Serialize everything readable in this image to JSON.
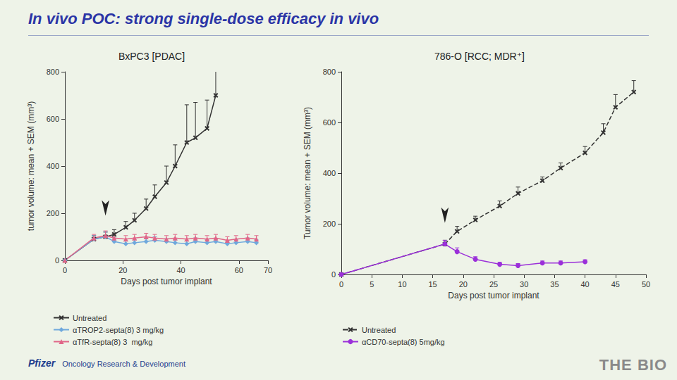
{
  "heading": "In vivo POC: strong single-dose efficacy in vivo",
  "footer": [
    "Pfizer",
    "Oncology Research & Development"
  ],
  "watermark": "THE BIO",
  "chart_data": [
    {
      "type": "line",
      "title": "BxPC3 [PDAC]",
      "x_label": "Days post tumor implant",
      "y_label": "tumor volume: mean + SEM (mm³)",
      "xlim": [
        0,
        70
      ],
      "xticks": [
        0,
        20,
        40,
        60
      ],
      "ylim": [
        0,
        800
      ],
      "yticks": [
        0,
        200,
        400,
        600,
        800
      ],
      "grid": false,
      "legend": "bottom",
      "arrow_x": 14,
      "series": [
        {
          "name": "Untreated",
          "color": "#333333",
          "marker": "x",
          "line_style": "solid",
          "x": [
            0,
            10,
            14,
            17,
            21,
            24,
            28,
            31,
            35,
            38,
            42,
            45,
            49,
            52
          ],
          "values": [
            0,
            90,
            100,
            110,
            140,
            170,
            220,
            270,
            330,
            400,
            500,
            520,
            560,
            700
          ],
          "errors": [
            null,
            15,
            20,
            20,
            25,
            30,
            40,
            50,
            70,
            90,
            160,
            150,
            120,
            130
          ]
        },
        {
          "name": "αTROP2-septa(8) 3 mg/kg",
          "color": "#6fa8dc",
          "marker": "diamond",
          "line_style": "solid",
          "x": [
            0,
            10,
            14,
            17,
            21,
            24,
            28,
            31,
            35,
            38,
            42,
            45,
            49,
            52,
            56,
            59,
            63,
            66
          ],
          "values": [
            0,
            90,
            100,
            80,
            70,
            75,
            80,
            85,
            80,
            75,
            70,
            80,
            75,
            80,
            70,
            75,
            80,
            75
          ],
          "errors": [
            null,
            15,
            20,
            15,
            12,
            12,
            15,
            15,
            12,
            12,
            12,
            15,
            12,
            12,
            12,
            12,
            15,
            12
          ]
        },
        {
          "name": "αTfR-septa(8) 3  mg/kg",
          "color": "#e06688",
          "marker": "triangle",
          "line_style": "solid",
          "x": [
            0,
            10,
            14,
            17,
            21,
            24,
            28,
            31,
            35,
            38,
            42,
            45,
            49,
            52,
            56,
            59,
            63,
            66
          ],
          "values": [
            0,
            95,
            105,
            95,
            90,
            95,
            100,
            95,
            90,
            95,
            90,
            95,
            90,
            95,
            85,
            90,
            95,
            90
          ],
          "errors": [
            null,
            15,
            20,
            15,
            15,
            15,
            15,
            15,
            15,
            15,
            15,
            15,
            15,
            15,
            15,
            15,
            15,
            15
          ]
        }
      ]
    },
    {
      "type": "line",
      "title": "786-O [RCC; MDR⁺]",
      "x_label": "Days post tumor implant",
      "y_label": "Tumor volume: mean + SEM (mm³)",
      "xlim": [
        0,
        50
      ],
      "xticks": [
        0,
        5,
        10,
        15,
        20,
        25,
        30,
        35,
        40,
        45,
        50
      ],
      "ylim": [
        0,
        800
      ],
      "yticks": [
        0,
        200,
        400,
        600,
        800
      ],
      "grid": false,
      "legend": "bottom",
      "arrow_x": 17,
      "series": [
        {
          "name": "Untreated",
          "color": "#333333",
          "marker": "x",
          "line_style": "dashed",
          "x": [
            0,
            17,
            19,
            22,
            26,
            29,
            33,
            36,
            40,
            43,
            45,
            48
          ],
          "values": [
            0,
            120,
            170,
            215,
            270,
            320,
            370,
            420,
            480,
            560,
            660,
            720
          ],
          "errors": [
            null,
            15,
            20,
            15,
            20,
            25,
            15,
            20,
            25,
            35,
            50,
            45
          ]
        },
        {
          "name": "αCD70-septa(8) 5mg/kg",
          "color": "#9b30d9",
          "marker": "circle",
          "line_style": "solid",
          "x": [
            0,
            17,
            19,
            22,
            26,
            29,
            33,
            36,
            40
          ],
          "values": [
            0,
            120,
            90,
            60,
            40,
            35,
            45,
            45,
            50
          ],
          "errors": [
            null,
            15,
            15,
            10,
            8,
            8,
            8,
            8,
            8
          ]
        }
      ]
    }
  ]
}
